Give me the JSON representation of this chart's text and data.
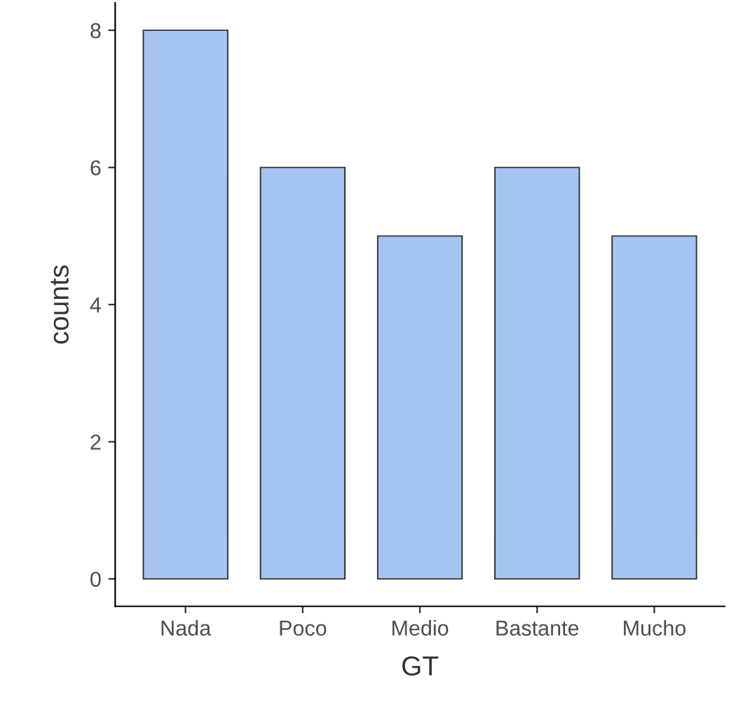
{
  "chart_data": {
    "type": "bar",
    "xlabel": "GT",
    "ylabel": "counts",
    "categories": [
      "Nada",
      "Poco",
      "Medio",
      "Bastante",
      "Mucho"
    ],
    "values": [
      8,
      6,
      5,
      6,
      5
    ],
    "color": "#a6c4f0",
    "ylim": [
      -0.4,
      8.4
    ],
    "yticks": [
      0,
      2,
      4,
      6,
      8
    ],
    "grid": false,
    "legend": false
  }
}
